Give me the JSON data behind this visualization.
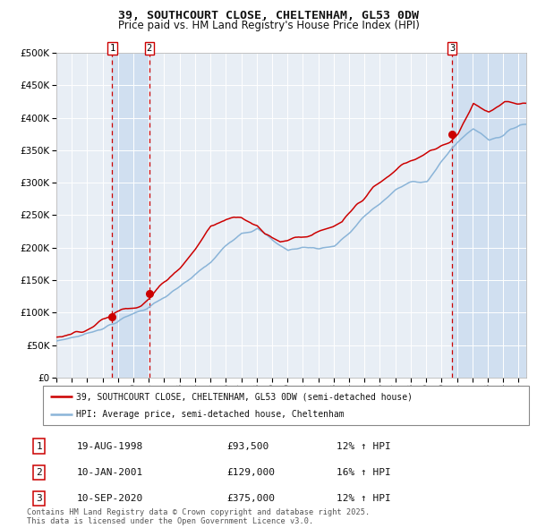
{
  "title_line1": "39, SOUTHCOURT CLOSE, CHELTENHAM, GL53 0DW",
  "title_line2": "Price paid vs. HM Land Registry's House Price Index (HPI)",
  "legend_line1": "39, SOUTHCOURT CLOSE, CHELTENHAM, GL53 0DW (semi-detached house)",
  "legend_line2": "HPI: Average price, semi-detached house, Cheltenham",
  "footnote": "Contains HM Land Registry data © Crown copyright and database right 2025.\nThis data is licensed under the Open Government Licence v3.0.",
  "price_color": "#cc0000",
  "hpi_color": "#8ab4d8",
  "plot_bg_color": "#e8eef5",
  "grid_color": "#ffffff",
  "span_color": "#d0dff0",
  "ylim": [
    0,
    500000
  ],
  "yticks": [
    0,
    50000,
    100000,
    150000,
    200000,
    250000,
    300000,
    350000,
    400000,
    450000,
    500000
  ],
  "sale1_t": 1998.63,
  "sale1_v": 93500,
  "sale2_t": 2001.03,
  "sale2_v": 129000,
  "sale3_t": 2020.69,
  "sale3_v": 375000,
  "sale_labels": [
    "1",
    "2",
    "3"
  ],
  "table_rows": [
    {
      "num": "1",
      "date": "19-AUG-1998",
      "price": "£93,500",
      "change": "12% ↑ HPI"
    },
    {
      "num": "2",
      "date": "10-JAN-2001",
      "price": "£129,000",
      "change": "16% ↑ HPI"
    },
    {
      "num": "3",
      "date": "10-SEP-2020",
      "price": "£375,000",
      "change": "12% ↑ HPI"
    }
  ],
  "xstart": 1995.0,
  "xend": 2025.5
}
